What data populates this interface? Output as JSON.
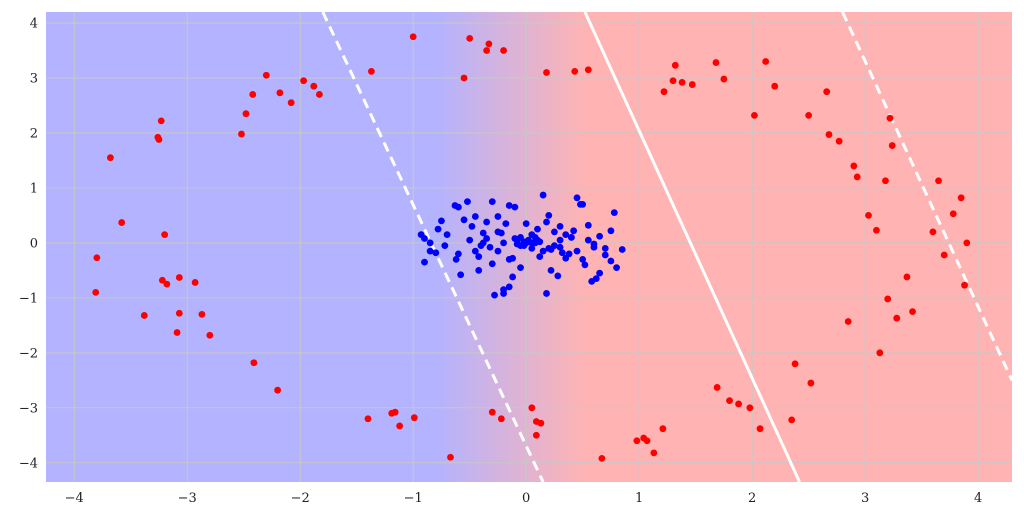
{
  "chart_data": {
    "type": "scatter",
    "title": "",
    "xlabel": "",
    "ylabel": "",
    "xlim": [
      -4.25,
      4.3
    ],
    "ylim": [
      -4.35,
      4.2
    ],
    "grid": true,
    "x_ticks": [
      -4,
      -3,
      -2,
      -1,
      0,
      1,
      2,
      3,
      4
    ],
    "y_ticks": [
      4,
      3,
      2,
      1,
      0,
      -1,
      -2,
      -3,
      -4
    ],
    "x_tick_labels": [
      "−4",
      "−3",
      "−2",
      "−1",
      "0",
      "1",
      "2",
      "3",
      "4"
    ],
    "y_tick_labels": [
      "4",
      "3",
      "2",
      "1",
      "0",
      "−1",
      "−2",
      "−3",
      "−4"
    ],
    "colors": {
      "region_a": "#b3b3ff",
      "region_b": "#ffb3b3",
      "point_a": "#0000ff",
      "point_b": "#ff0000",
      "boundary": "#ffffff"
    },
    "decision_boundary": {
      "x1": [
        0.52,
        4.2
      ],
      "x2": [
        2.42,
        -4.35
      ]
    },
    "margin_lines": [
      {
        "x1": [
          -1.8,
          4.2
        ],
        "x2": [
          0.15,
          -4.35
        ]
      },
      {
        "x1": [
          2.8,
          4.2
        ],
        "x2": [
          4.3,
          -2.5
        ]
      }
    ],
    "series": [
      {
        "color": "#ff0000",
        "x": [
          -1.0,
          -0.5,
          -0.33,
          -0.2,
          -0.35,
          -0.55,
          -1.37,
          0.18,
          0.43,
          0.55,
          -2.3,
          -2.18,
          -2.08,
          -1.97,
          -1.88,
          -1.83,
          -2.42,
          -2.48,
          -2.52,
          -3.23,
          -3.26,
          -3.25,
          -3.68,
          -3.58,
          -3.2,
          -3.8,
          -3.81,
          -3.22,
          -3.18,
          -3.07,
          -2.93,
          -3.07,
          -3.38,
          -3.09,
          -2.87,
          -2.8,
          -2.41,
          -2.2,
          -1.4,
          -1.19,
          -1.16,
          -1.12,
          -0.99,
          -0.67,
          -0.3,
          -0.22,
          0.05,
          0.09,
          0.13,
          0.09,
          0.67,
          0.98,
          1.04,
          1.07,
          1.13,
          1.21,
          1.22,
          1.3,
          1.32,
          1.38,
          1.47,
          1.68,
          1.75,
          2.12,
          2.2,
          2.02,
          1.69,
          1.8,
          1.88,
          1.98,
          2.07,
          2.35,
          2.38,
          2.52,
          2.5,
          2.66,
          2.68,
          2.77,
          2.9,
          2.93,
          3.03,
          3.1,
          3.2,
          3.22,
          3.24,
          3.18,
          3.13,
          2.85,
          3.28,
          3.37,
          3.42,
          3.6,
          3.65,
          3.7,
          3.78,
          3.85,
          3.88,
          3.9
        ],
        "y": [
          3.75,
          3.72,
          3.62,
          3.5,
          3.5,
          3.0,
          3.12,
          3.1,
          3.12,
          3.15,
          3.05,
          2.73,
          2.55,
          2.95,
          2.85,
          2.7,
          2.7,
          2.35,
          1.98,
          2.22,
          1.92,
          1.88,
          1.55,
          0.37,
          0.15,
          -0.27,
          -0.9,
          -0.68,
          -0.75,
          -0.63,
          -0.72,
          -1.28,
          -1.32,
          -1.63,
          -1.3,
          -1.68,
          -2.18,
          -2.68,
          -3.2,
          -3.1,
          -3.08,
          -3.33,
          -3.18,
          -3.9,
          -3.08,
          -3.2,
          -3.0,
          -3.25,
          -3.28,
          -3.5,
          -3.92,
          -3.6,
          -3.55,
          -3.6,
          -3.82,
          -3.38,
          2.75,
          2.95,
          3.23,
          2.92,
          2.88,
          3.28,
          2.98,
          3.3,
          2.85,
          2.32,
          -2.63,
          -2.87,
          -2.93,
          -3.0,
          -3.38,
          -3.22,
          -2.2,
          -2.55,
          2.32,
          2.75,
          1.97,
          1.85,
          1.4,
          1.2,
          0.5,
          0.23,
          -1.02,
          2.27,
          1.77,
          1.13,
          -2.0,
          -1.43,
          -1.37,
          -0.62,
          -1.25,
          0.2,
          1.13,
          -0.22,
          0.53,
          0.82,
          -0.77,
          0.0
        ]
      },
      {
        "color": "#0000ff",
        "x": [
          -0.93,
          -0.9,
          -0.85,
          -0.8,
          -0.75,
          -0.78,
          -0.72,
          -0.63,
          -0.6,
          -0.55,
          -0.52,
          -0.48,
          -0.42,
          -0.38,
          -0.35,
          -0.3,
          -0.25,
          -0.2,
          -0.15,
          -0.1,
          -0.05,
          0.0,
          0.05,
          0.1,
          0.15,
          0.2,
          0.25,
          0.3,
          0.35,
          0.4,
          0.45,
          0.5,
          0.55,
          0.6,
          0.65,
          0.7,
          0.75,
          0.8,
          -0.9,
          -0.7,
          -0.58,
          -0.45,
          -0.35,
          -0.25,
          -0.15,
          -0.05,
          0.05,
          0.15,
          0.25,
          0.35,
          0.45,
          0.55,
          0.65,
          0.75,
          -0.6,
          -0.4,
          -0.2,
          0.0,
          0.2,
          0.4,
          0.6,
          -0.3,
          -0.1,
          0.1,
          0.3,
          0.5,
          -0.5,
          0.7,
          -0.25,
          -0.08,
          0.08,
          0.22,
          -0.18,
          0.02,
          0.12,
          -0.02,
          -0.12,
          0.18,
          0.32,
          -0.32,
          0.42,
          -0.42,
          0.52,
          -0.22,
          0.28,
          -0.62,
          0.62,
          0.78,
          -0.85,
          0.85,
          -0.2,
          -0.15,
          -0.12,
          0.0,
          0.05,
          0.48,
          0.18,
          0.08,
          -0.38,
          0.38,
          -0.45,
          0.58,
          -0.28,
          0.12,
          -0.05,
          0.22,
          0.3,
          -0.08,
          0.02,
          -0.02
        ],
        "y": [
          0.15,
          0.08,
          -0.15,
          -0.18,
          0.4,
          0.25,
          -0.05,
          0.68,
          0.65,
          0.42,
          0.75,
          0.3,
          -0.5,
          0.18,
          0.38,
          0.75,
          -0.15,
          -0.85,
          0.68,
          0.65,
          0.1,
          0.0,
          -0.1,
          0.05,
          0.87,
          0.5,
          -0.05,
          -0.08,
          0.15,
          0.1,
          0.82,
          0.7,
          0.32,
          -0.02,
          0.12,
          -0.22,
          -0.33,
          -0.45,
          -0.35,
          0.15,
          -0.58,
          0.48,
          0.08,
          0.2,
          -0.3,
          -0.45,
          0.15,
          -0.15,
          0.2,
          -0.28,
          -0.15,
          0.05,
          -0.55,
          0.22,
          -0.2,
          -0.05,
          0.0,
          0.35,
          -0.1,
          0.1,
          -0.08,
          -0.38,
          0.08,
          0.25,
          0.05,
          -0.3,
          0.05,
          -0.1,
          0.48,
          -0.02,
          0.0,
          -0.5,
          0.35,
          0.05,
          0.02,
          -0.05,
          -0.28,
          0.38,
          -0.18,
          -0.08,
          0.22,
          -0.25,
          -0.4,
          0.18,
          -0.6,
          -0.3,
          -0.65,
          0.55,
          0.0,
          -0.12,
          -0.92,
          -0.8,
          -0.62,
          0.0,
          0.0,
          0.7,
          -0.92,
          0.1,
          0.0,
          -0.2,
          -0.15,
          -0.7,
          -0.95,
          -0.25,
          -0.05,
          -0.12,
          0.3,
          0.05,
          0.02,
          0.02
        ]
      }
    ]
  }
}
